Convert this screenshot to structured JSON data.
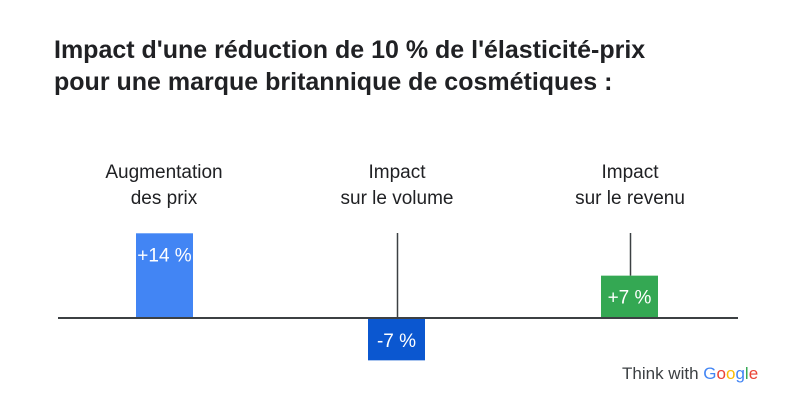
{
  "title_line1": "Impact d'une réduction de 10 % de l'élasticité-prix",
  "title_line2": "pour une marque britannique de cosmétiques :",
  "chart_data": {
    "type": "bar",
    "title": "Impact d'une réduction de 10 % de l'élasticité-prix pour une marque britannique de cosmétiques :",
    "categories": [
      [
        "Augmentation",
        "des prix"
      ],
      [
        "Impact",
        "sur le volume"
      ],
      [
        "Impact",
        "sur le revenu"
      ]
    ],
    "values": [
      14,
      -7,
      7
    ],
    "value_labels": [
      "+14 %",
      "-7 %",
      "+7 %"
    ],
    "colors": [
      "#4285f4",
      "#0b57d0",
      "#34a853"
    ],
    "grid": false
  },
  "logo": {
    "prefix": "Think with",
    "brand": "Google",
    "brand_colors": [
      "#4285f4",
      "#ea4335",
      "#fbbc05",
      "#4285f4",
      "#34a853",
      "#ea4335"
    ]
  }
}
